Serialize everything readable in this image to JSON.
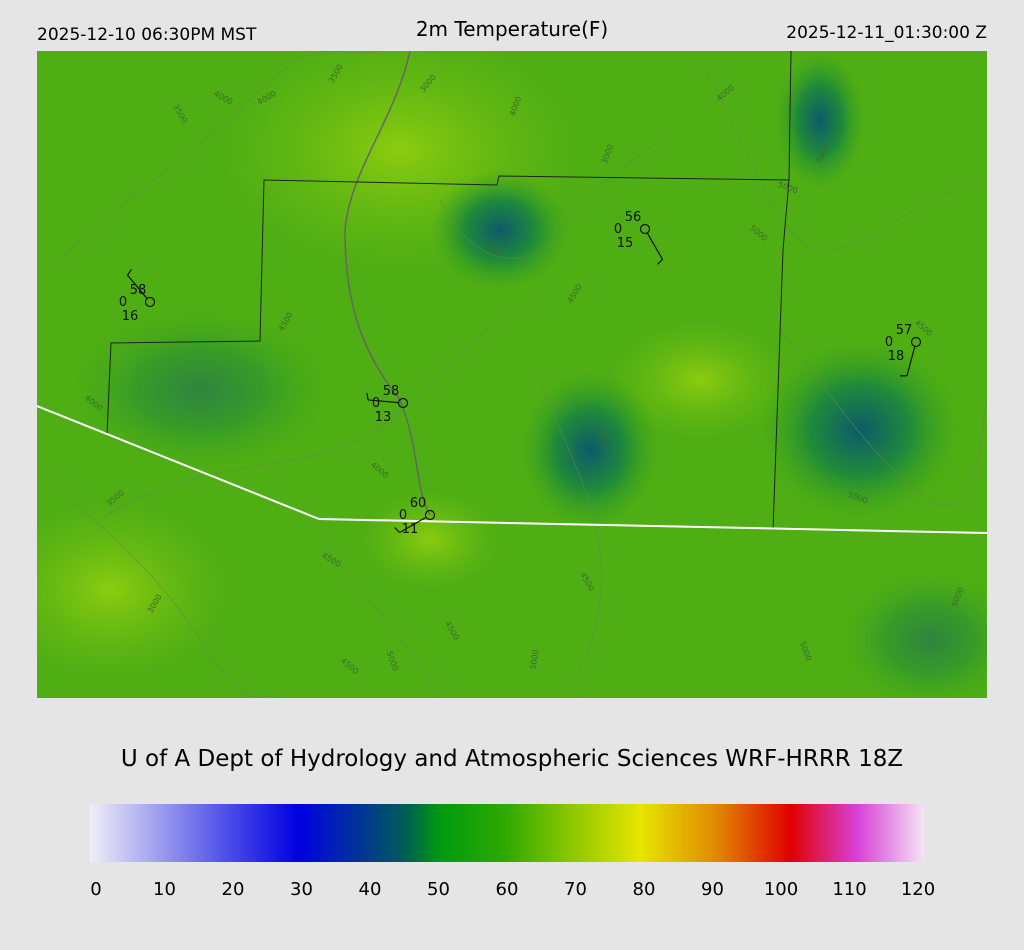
{
  "header": {
    "left": "2025-12-10 06:30PM MST",
    "title": "2m Temperature(F)",
    "right": "2025-12-11_01:30:00 Z"
  },
  "stations": [
    {
      "temp": 58,
      "cloud": 0,
      "dew": 16
    },
    {
      "temp": 56,
      "cloud": 0,
      "dew": 15
    },
    {
      "temp": 58,
      "cloud": 0,
      "dew": 13
    },
    {
      "temp": 60,
      "cloud": 0,
      "dew": 11
    },
    {
      "temp": 57,
      "cloud": 0,
      "dew": 18
    }
  ],
  "contour_labels": [
    "4000",
    "4000",
    "3500",
    "3000",
    "4000",
    "4000",
    "3500",
    "3000",
    "5000",
    "5000",
    "4500",
    "4500",
    "4000",
    "4500",
    "4000",
    "3500",
    "4500",
    "3000",
    "4500",
    "4500",
    "4500",
    "5000",
    "5000",
    "5000",
    "5000",
    "5000",
    "5000",
    "5000",
    "5000"
  ],
  "footer": "U of A Dept of Hydrology and Atmospheric Sciences WRF-HRRR 18Z",
  "colorbar": {
    "ticks": [
      0,
      10,
      20,
      30,
      40,
      50,
      60,
      70,
      80,
      90,
      100,
      110,
      120
    ]
  }
}
